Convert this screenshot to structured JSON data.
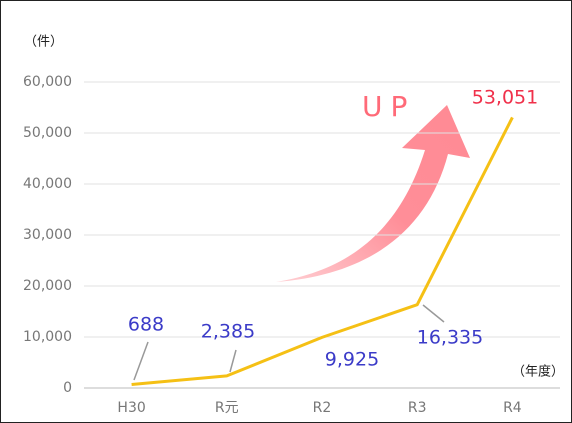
{
  "chart_data": {
    "type": "line",
    "y_unit_label": "（件）",
    "x_axis_label": "（年度）",
    "annotation": "UP",
    "categories": [
      "H30",
      "R元",
      "R2",
      "R3",
      "R4"
    ],
    "series": [
      {
        "color": "#f5c015",
        "values": [
          688,
          2385,
          9925,
          16335,
          53051
        ],
        "value_labels": [
          "688",
          "2,385",
          "9,925",
          "16,335",
          "53,051"
        ],
        "value_label_colors": [
          "#3b3bc8",
          "#3b3bc8",
          "#3b3bc8",
          "#3b3bc8",
          "#f0304a"
        ]
      }
    ],
    "ylim": [
      0,
      60000
    ],
    "yticks": [
      0,
      {
        "value": 10000,
        "label": "10,000"
      },
      {
        "value": 20000,
        "label": "20,000"
      },
      {
        "value": 30000,
        "label": "30,000"
      },
      {
        "value": 40000,
        "label": "40,000"
      },
      {
        "value": 50000,
        "label": "50,000"
      },
      {
        "value": 60000,
        "label": "60,000"
      }
    ],
    "grid": true
  }
}
